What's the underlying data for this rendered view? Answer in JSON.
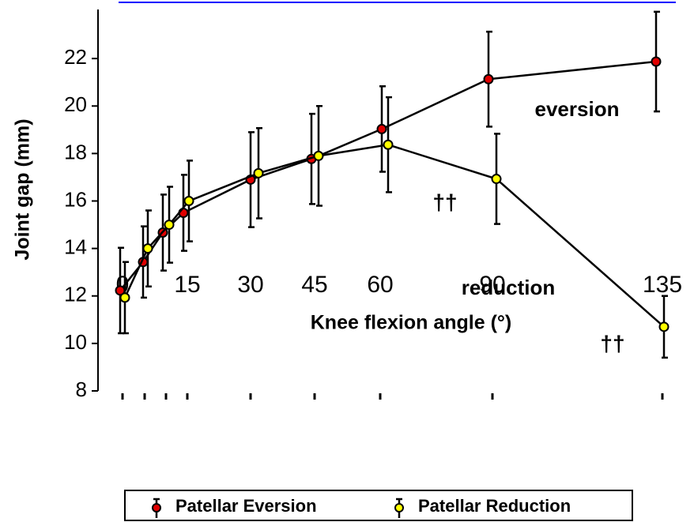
{
  "chart_data": {
    "type": "line",
    "x_label": "Knee flexion angle (°)",
    "y_label": "Joint gap (mm)",
    "categories": [
      "0",
      null,
      null,
      "15",
      "30",
      "45",
      "60",
      "90",
      "135"
    ],
    "ylim": [
      8,
      24
    ],
    "yticks": [
      8,
      10,
      12,
      14,
      16,
      18,
      20,
      22
    ],
    "series": [
      {
        "name": "Patellar Eversion",
        "color": "#e00000",
        "values": [
          12.23,
          13.43,
          14.67,
          15.5,
          16.9,
          17.77,
          19.03,
          21.13,
          21.87
        ],
        "errors": [
          1.8,
          1.5,
          1.6,
          1.6,
          2.0,
          1.9,
          1.8,
          2.0,
          2.1
        ]
      },
      {
        "name": "Patellar Reduction",
        "color": "#ffff00",
        "values": [
          11.93,
          14.0,
          15.0,
          16.0,
          17.17,
          17.9,
          18.37,
          16.93,
          10.7
        ],
        "errors": [
          1.5,
          1.6,
          1.6,
          1.7,
          1.9,
          2.1,
          2.0,
          1.9,
          1.3
        ]
      }
    ],
    "annotations": [
      "eversion",
      "reduction",
      "††",
      "††"
    ]
  }
}
